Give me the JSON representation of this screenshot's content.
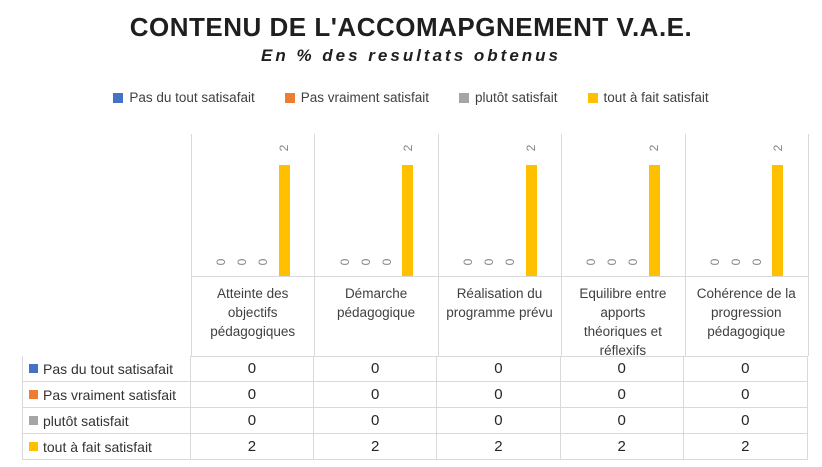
{
  "title": "CONTENU DE L'ACCOMAPGNEMENT V.A.E.",
  "subtitle": "En % des resultats obtenus",
  "colors": {
    "series_blue": "#4472C4",
    "series_orange": "#ED7D31",
    "series_gray": "#A5A5A5",
    "series_yellow": "#FFC000",
    "gridline": "#D9D9D9",
    "data_label": "#848484",
    "title_text": "#1F1F1F"
  },
  "chart_data": {
    "type": "bar",
    "title": "CONTENU DE L'ACCOMAPGNEMENT V.A.E.",
    "subtitle": "En % des resultats obtenus",
    "categories": [
      "Atteinte des objectifs pédagogiques",
      "Démarche pédagogique",
      "Réalisation du programme prévu",
      "Equilibre entre apports théoriques et réflexifs",
      "Cohérence de la progression pédagogique"
    ],
    "series": [
      {
        "name": "Pas du tout satisafait",
        "color": "#4472C4",
        "values": [
          0,
          0,
          0,
          0,
          0
        ]
      },
      {
        "name": "Pas vraiment satisfait",
        "color": "#ED7D31",
        "values": [
          0,
          0,
          0,
          0,
          0
        ]
      },
      {
        "name": "plutôt satisfait",
        "color": "#A5A5A5",
        "values": [
          0,
          0,
          0,
          0,
          0
        ]
      },
      {
        "name": "tout à fait satisfait",
        "color": "#FFC000",
        "values": [
          2,
          2,
          2,
          2,
          2
        ]
      }
    ],
    "ylim": [
      0,
      2.1
    ],
    "y_axis_visible": false,
    "grid": "vertical-category-separators",
    "data_labels": true,
    "data_label_rotation": "vertical",
    "legend_position": "top",
    "data_table": true
  }
}
